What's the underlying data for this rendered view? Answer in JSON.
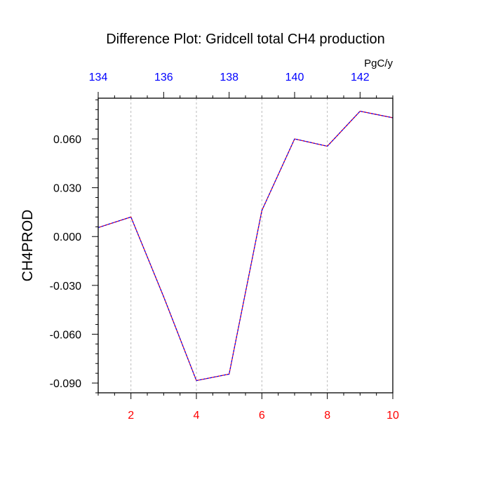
{
  "chart_data": {
    "type": "line",
    "title": "Difference Plot: Gridcell total CH4 production",
    "ylabel": "CH4PROD",
    "top_axis_units": "PgC/y",
    "x": [
      1,
      2,
      3,
      4,
      5,
      6,
      7,
      8,
      9,
      10
    ],
    "series": [
      {
        "values": [
          0.0055,
          0.012,
          -0.037,
          -0.0885,
          -0.0845,
          0.016,
          0.06,
          0.0555,
          0.077,
          0.073
        ]
      }
    ],
    "xlim": [
      1,
      10
    ],
    "ylim": [
      -0.096,
      0.085
    ],
    "bottom_ticks": [
      2,
      4,
      6,
      8,
      10
    ],
    "bottom_tick_labels": [
      "2",
      "4",
      "6",
      "8",
      "10"
    ],
    "top_xlim": [
      134,
      143
    ],
    "top_ticks": [
      134,
      136,
      138,
      140,
      142
    ],
    "top_tick_labels": [
      "134",
      "136",
      "138",
      "140",
      "142"
    ],
    "y_ticks": [
      0.06,
      0.03,
      0.0,
      -0.03,
      -0.06,
      -0.09
    ],
    "y_tick_labels": [
      "0.060",
      "0.030",
      "0.000",
      "-0.030",
      "-0.060",
      "-0.090"
    ],
    "vertical_grid": true,
    "colors": {
      "line_a": "#ff0000",
      "line_b": "#0000ff",
      "bottom_ticks": "#ff0000",
      "top_ticks": "#0000ff",
      "grid": "#bbbbbb",
      "axes": "#000000"
    }
  }
}
